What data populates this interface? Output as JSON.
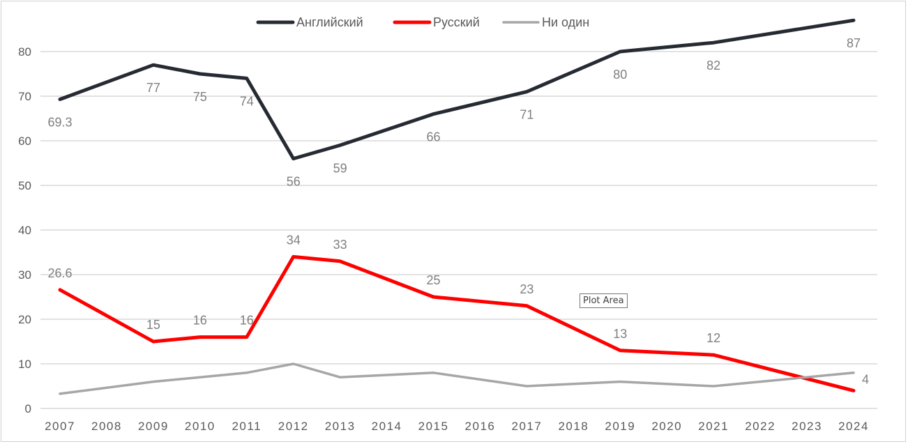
{
  "chart_data": {
    "type": "line",
    "x": [
      2007,
      2009,
      2010,
      2011,
      2012,
      2013,
      2015,
      2017,
      2019,
      2021,
      2024
    ],
    "x_tick_labels": [
      "2007",
      "2008",
      "2009",
      "2010",
      "2011",
      "2012",
      "2013",
      "2014",
      "2015",
      "2016",
      "2017",
      "2018",
      "2019",
      "2020",
      "2021",
      "2022",
      "2023",
      "2024"
    ],
    "y_tick_labels": [
      "0",
      "10",
      "20",
      "30",
      "40",
      "50",
      "60",
      "70",
      "80"
    ],
    "ylim": [
      0,
      88
    ],
    "grid": true,
    "legend_position": "top",
    "series": [
      {
        "name": "Английский",
        "color": "#262b33",
        "values": [
          69.3,
          77,
          75,
          74,
          56,
          59,
          66,
          71,
          80,
          82,
          87
        ],
        "data_labels": [
          "69.3",
          "77",
          "75",
          "74",
          "56",
          "59",
          "66",
          "71",
          "80",
          "82",
          "87"
        ]
      },
      {
        "name": "Русский",
        "color": "#ff0000",
        "values": [
          26.6,
          15,
          16,
          16,
          34,
          33,
          25,
          23,
          13,
          12,
          4
        ],
        "data_labels": [
          "26.6",
          "15",
          "16",
          "16",
          "34",
          "33",
          "25",
          "23",
          "13",
          "12",
          "4"
        ]
      },
      {
        "name": "Ни один",
        "color": "#a6a6a6",
        "values": [
          3.3,
          6,
          7,
          8,
          10,
          7,
          8,
          5,
          6,
          5,
          8
        ]
      }
    ]
  },
  "tooltip": "Plot Area"
}
